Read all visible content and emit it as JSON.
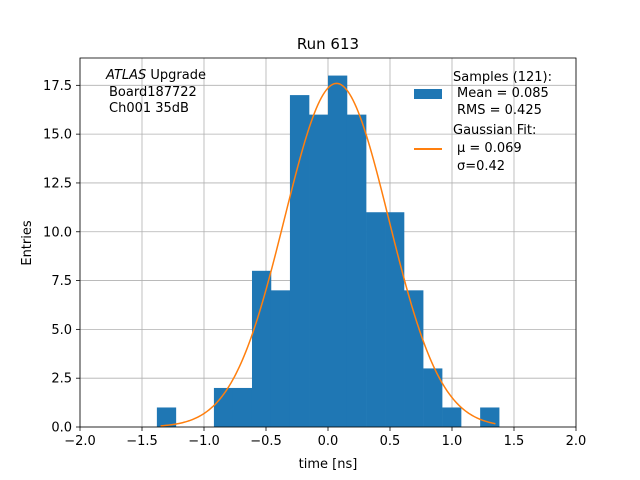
{
  "chart_data": {
    "type": "bar",
    "title": "Run 613",
    "xlabel": "time [ns]",
    "ylabel": "Entries",
    "xlim": [
      -2.0,
      2.0
    ],
    "ylim": [
      0,
      18.9
    ],
    "x_ticks": [
      -2.0,
      -1.5,
      -1.0,
      -0.5,
      0.0,
      0.5,
      1.0,
      1.5,
      2.0
    ],
    "x_tick_labels": [
      "−2.0",
      "−1.5",
      "−1.0",
      "−0.5",
      "0.0",
      "0.5",
      "1.0",
      "1.5",
      "2.0"
    ],
    "y_ticks": [
      0.0,
      2.5,
      5.0,
      7.5,
      10.0,
      12.5,
      15.0,
      17.5
    ],
    "y_tick_labels": [
      "0.0",
      "2.5",
      "5.0",
      "7.5",
      "10.0",
      "12.5",
      "15.0",
      "17.5"
    ],
    "grid": true,
    "legend_position": "top-right",
    "histogram": {
      "bin_edges": [
        -1.38,
        -1.227,
        -1.073,
        -0.92,
        -0.767,
        -0.613,
        -0.46,
        -0.307,
        -0.153,
        0.0,
        0.153,
        0.307,
        0.46,
        0.613,
        0.767,
        0.92,
        1.073,
        1.227,
        1.38
      ],
      "counts": [
        1,
        0,
        0,
        2,
        2,
        8,
        7,
        17,
        16,
        18,
        16,
        11,
        11,
        7,
        3,
        1,
        0,
        1
      ]
    },
    "gaussian_fit": {
      "mu": 0.069,
      "sigma": 0.42,
      "amplitude": 17.6,
      "x_range": [
        -1.35,
        1.35
      ]
    },
    "colors": {
      "histogram": "#1f77b4",
      "fit": "#ff7f0e",
      "grid": "#b0b0b0"
    },
    "annotation": {
      "atlas": "ATLAS",
      "upgrade": " Upgrade",
      "line2": "Board187722",
      "line3": "Ch001 35dB"
    },
    "legend": {
      "samples_title": "Samples (121):",
      "samples_mean": "Mean = 0.085",
      "samples_rms": "RMS = 0.425",
      "fit_title": "Gaussian Fit:",
      "fit_mu": "μ = 0.069",
      "fit_sigma": "σ=0.42"
    }
  }
}
